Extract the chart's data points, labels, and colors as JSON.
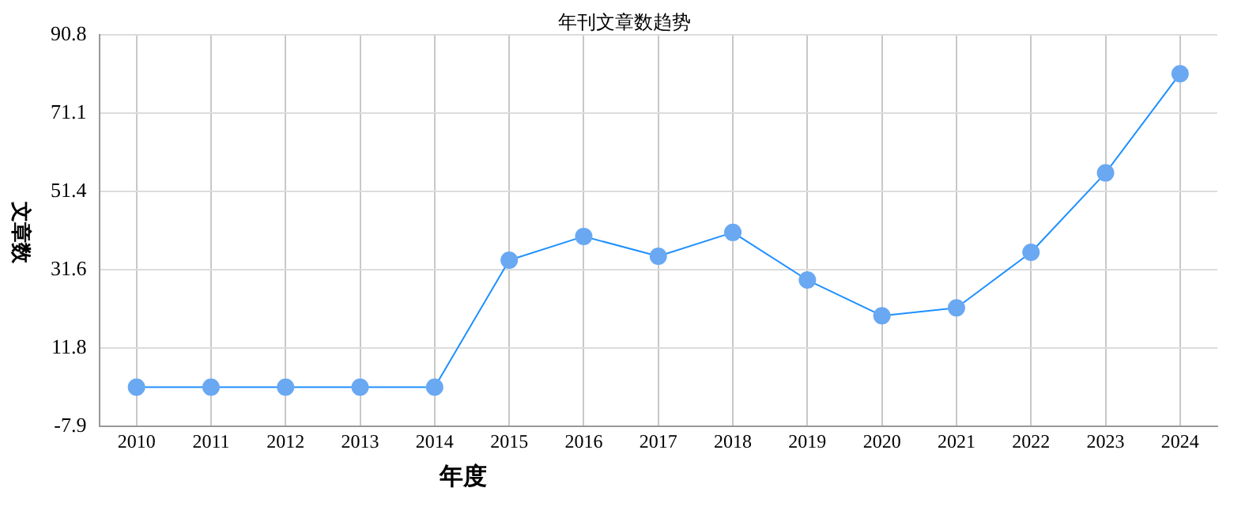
{
  "chart_data": {
    "type": "line",
    "title": "年刊文章数趋势",
    "xlabel": "年度",
    "ylabel": "文章数",
    "categories": [
      "2010",
      "2011",
      "2012",
      "2013",
      "2014",
      "2015",
      "2016",
      "2017",
      "2018",
      "2019",
      "2020",
      "2021",
      "2022",
      "2023",
      "2024"
    ],
    "series": [
      {
        "color": "#1e90ff",
        "values": [
          2,
          2,
          2,
          2,
          2,
          34,
          40,
          35,
          41,
          29,
          20,
          22,
          36,
          56,
          81
        ]
      }
    ],
    "ylim": [
      -7.9,
      90.8
    ],
    "yticks": [
      -7.9,
      11.8,
      31.6,
      51.4,
      71.1,
      90.8
    ],
    "grid": true,
    "legend": false,
    "marker": "circle"
  }
}
